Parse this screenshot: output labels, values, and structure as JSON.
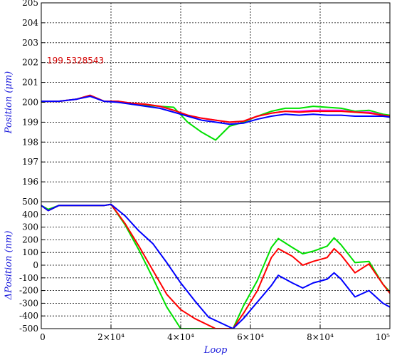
{
  "chart_data": [
    {
      "type": "line",
      "panel": "top",
      "ylabel": "Position (μm)",
      "xlim": [
        0,
        100000
      ],
      "ylim": [
        195,
        205
      ],
      "grid": true,
      "y_ticks": [
        "205",
        "204",
        "203",
        "202",
        "201",
        "200",
        "199",
        "198",
        "197",
        "196"
      ],
      "annotation": "199.5328543",
      "series": [
        {
          "color": "#00e000",
          "x": [
            0,
            5000,
            10000,
            14000,
            18000,
            22000,
            26000,
            30000,
            34000,
            38000,
            42000,
            46000,
            50000,
            54000,
            58000,
            62000,
            66000,
            70000,
            74000,
            78000,
            82000,
            86000,
            90000,
            94000,
            98000,
            100000
          ],
          "y": [
            200.05,
            200.05,
            200.15,
            200.35,
            200.05,
            200.05,
            199.9,
            199.85,
            199.8,
            199.75,
            199.0,
            198.5,
            198.1,
            198.8,
            199.0,
            199.3,
            199.55,
            199.7,
            199.7,
            199.8,
            199.75,
            199.7,
            199.55,
            199.6,
            199.4,
            199.35
          ]
        },
        {
          "color": "#ff00ff",
          "x": [
            0,
            5000,
            10000,
            14000,
            18000,
            22000,
            26000,
            30000,
            34000,
            38000,
            42000,
            46000,
            50000,
            54000,
            58000,
            62000,
            66000,
            70000,
            74000,
            78000,
            82000,
            86000,
            90000,
            94000,
            98000,
            100000
          ],
          "y": [
            200.05,
            200.05,
            200.15,
            200.35,
            200.05,
            200.05,
            199.95,
            199.9,
            199.8,
            199.6,
            199.35,
            199.2,
            199.1,
            199.0,
            199.05,
            199.3,
            199.45,
            199.55,
            199.55,
            199.6,
            199.6,
            199.6,
            199.5,
            199.5,
            199.35,
            199.3
          ]
        },
        {
          "color": "#ff0000",
          "x": [
            0,
            5000,
            10000,
            14000,
            18000,
            22000,
            26000,
            30000,
            34000,
            38000,
            42000,
            46000,
            50000,
            54000,
            58000,
            62000,
            66000,
            70000,
            74000,
            78000,
            82000,
            86000,
            90000,
            94000,
            98000,
            100000
          ],
          "y": [
            200.05,
            200.05,
            200.15,
            200.35,
            200.05,
            200.05,
            199.95,
            199.9,
            199.8,
            199.6,
            199.35,
            199.2,
            199.1,
            199.0,
            199.05,
            199.3,
            199.45,
            199.55,
            199.5,
            199.55,
            199.55,
            199.55,
            199.5,
            199.45,
            199.35,
            199.3
          ]
        },
        {
          "color": "#0000ff",
          "x": [
            0,
            5000,
            10000,
            14000,
            18000,
            22000,
            26000,
            30000,
            34000,
            38000,
            42000,
            46000,
            50000,
            54000,
            58000,
            62000,
            66000,
            70000,
            74000,
            78000,
            82000,
            86000,
            90000,
            94000,
            98000,
            100000
          ],
          "y": [
            200.05,
            200.05,
            200.15,
            200.3,
            200.05,
            200.0,
            199.9,
            199.8,
            199.7,
            199.5,
            199.3,
            199.1,
            199.0,
            198.9,
            198.95,
            199.15,
            199.3,
            199.4,
            199.35,
            199.4,
            199.35,
            199.35,
            199.3,
            199.3,
            199.3,
            199.25
          ]
        }
      ]
    },
    {
      "type": "line",
      "panel": "bottom",
      "ylabel": "ΔPosition (nm)",
      "xlabel": "Loop",
      "xlim": [
        0,
        100000
      ],
      "ylim": [
        -500,
        500
      ],
      "grid": true,
      "x_ticks": [
        "0",
        "2×10⁴",
        "4×10⁴",
        "6×10⁴",
        "8×10⁴",
        "10⁵"
      ],
      "y_ticks": [
        "500",
        "400",
        "300",
        "200",
        "100",
        "0",
        "-100",
        "-200",
        "-300",
        "-400",
        "-500"
      ],
      "series": [
        {
          "color": "#00e000",
          "x": [
            0,
            2000,
            5000,
            9000,
            14000,
            18000,
            20000,
            24000,
            28000,
            32000,
            36000,
            40000,
            44000,
            55000,
            58000,
            62000,
            66000,
            68000,
            72000,
            75000,
            78000,
            82000,
            84000,
            86000,
            90000,
            94000,
            98000,
            100000
          ],
          "y": [
            470,
            440,
            470,
            470,
            470,
            470,
            480,
            320,
            120,
            -100,
            -330,
            -500,
            -500,
            -500,
            -320,
            -120,
            140,
            210,
            140,
            90,
            110,
            150,
            215,
            160,
            20,
            30,
            -150,
            -210
          ]
        },
        {
          "color": "#ff0000",
          "x": [
            0,
            2000,
            5000,
            9000,
            14000,
            18000,
            20000,
            24000,
            28000,
            32000,
            36000,
            40000,
            44000,
            50000,
            55000,
            58000,
            62000,
            66000,
            68000,
            72000,
            75000,
            78000,
            82000,
            84000,
            86000,
            90000,
            94000,
            98000,
            100000
          ],
          "y": [
            470,
            430,
            470,
            470,
            470,
            470,
            480,
            330,
            150,
            -40,
            -230,
            -350,
            -420,
            -500,
            -500,
            -380,
            -200,
            60,
            130,
            70,
            0,
            30,
            60,
            130,
            80,
            -60,
            10,
            -150,
            -220
          ]
        },
        {
          "color": "#0000ff",
          "x": [
            0,
            2000,
            5000,
            9000,
            14000,
            18000,
            20000,
            24000,
            28000,
            32000,
            36000,
            40000,
            44000,
            48000,
            55000,
            58000,
            62000,
            66000,
            68000,
            72000,
            75000,
            78000,
            82000,
            84000,
            86000,
            90000,
            94000,
            98000,
            100000
          ],
          "y": [
            470,
            430,
            470,
            470,
            470,
            470,
            480,
            390,
            270,
            170,
            20,
            -140,
            -280,
            -410,
            -500,
            -420,
            -290,
            -160,
            -80,
            -140,
            -180,
            -140,
            -110,
            -60,
            -110,
            -250,
            -200,
            -300,
            -330
          ]
        }
      ]
    }
  ]
}
